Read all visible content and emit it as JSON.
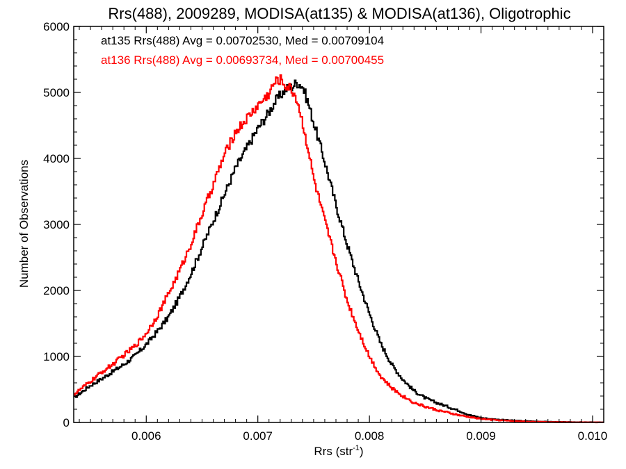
{
  "chart_data": {
    "type": "line",
    "title": "Rrs(488), 2009289, MODISA(at135) & MODISA(at136), Oligotrophic",
    "xlabel": "Rrs (str",
    "xlabel_sup": "-1",
    "xlabel_suffix": ")",
    "ylabel": "Number of Observations",
    "xlim": [
      0.00535,
      0.0101
    ],
    "ylim": [
      0,
      6000
    ],
    "x_ticks": [
      {
        "value": 0.006,
        "label": "0.006"
      },
      {
        "value": 0.007,
        "label": "0.007"
      },
      {
        "value": 0.008,
        "label": "0.008"
      },
      {
        "value": 0.009,
        "label": "0.009"
      },
      {
        "value": 0.01,
        "label": "0.010"
      }
    ],
    "y_ticks": [
      {
        "value": 0,
        "label": "0"
      },
      {
        "value": 1000,
        "label": "1000"
      },
      {
        "value": 2000,
        "label": "2000"
      },
      {
        "value": 3000,
        "label": "3000"
      },
      {
        "value": 4000,
        "label": "4000"
      },
      {
        "value": 5000,
        "label": "5000"
      },
      {
        "value": 6000,
        "label": "6000"
      }
    ],
    "grid": false,
    "legend_position": "top-left",
    "series": [
      {
        "name": "at135",
        "label": "at135 Rrs(488) Avg = 0.00702530, Med = 0.00709104",
        "color": "#000000",
        "x": [
          0.00535,
          0.0055,
          0.0056,
          0.0057,
          0.0058,
          0.0059,
          0.006,
          0.0061,
          0.0062,
          0.0063,
          0.0064,
          0.0065,
          0.0066,
          0.0067,
          0.0068,
          0.0069,
          0.007,
          0.0071,
          0.00715,
          0.0072,
          0.00725,
          0.0073,
          0.00735,
          0.0074,
          0.00745,
          0.0075,
          0.0076,
          0.0077,
          0.0078,
          0.0079,
          0.008,
          0.0081,
          0.0082,
          0.0083,
          0.0084,
          0.0085,
          0.0086,
          0.0087,
          0.0088,
          0.0089,
          0.009,
          0.0091,
          0.0092,
          0.0093,
          0.0094,
          0.0096,
          0.0098,
          0.0101
        ],
        "values": [
          370,
          560,
          660,
          770,
          880,
          1010,
          1180,
          1380,
          1600,
          1900,
          2250,
          2650,
          3050,
          3450,
          3850,
          4150,
          4450,
          4700,
          4850,
          4950,
          5050,
          5080,
          5150,
          5100,
          4850,
          4550,
          3950,
          3300,
          2700,
          2150,
          1650,
          1200,
          880,
          650,
          480,
          370,
          300,
          240,
          180,
          110,
          70,
          50,
          38,
          28,
          20,
          10,
          5,
          2
        ]
      },
      {
        "name": "at136",
        "label": "at136 Rrs(488) Avg = 0.00693734, Med = 0.00700455",
        "color": "#ff0000",
        "x": [
          0.00535,
          0.0055,
          0.0056,
          0.0057,
          0.0058,
          0.0059,
          0.006,
          0.0061,
          0.0062,
          0.0063,
          0.0064,
          0.0065,
          0.0066,
          0.0067,
          0.0068,
          0.0069,
          0.007,
          0.0071,
          0.00715,
          0.0072,
          0.00725,
          0.0073,
          0.00735,
          0.0074,
          0.00745,
          0.0075,
          0.0076,
          0.0077,
          0.0078,
          0.0079,
          0.008,
          0.0081,
          0.0082,
          0.0083,
          0.0084,
          0.0085,
          0.0086,
          0.0087,
          0.0088,
          0.0089,
          0.009,
          0.0091,
          0.0092,
          0.0093,
          0.0094,
          0.0096,
          0.0098,
          0.0101
        ],
        "values": [
          420,
          620,
          760,
          880,
          1020,
          1160,
          1350,
          1620,
          1950,
          2300,
          2700,
          3150,
          3600,
          4050,
          4400,
          4600,
          4800,
          4980,
          5150,
          5200,
          5100,
          5050,
          4900,
          4550,
          4150,
          3700,
          3050,
          2450,
          1850,
          1400,
          1000,
          700,
          520,
          400,
          300,
          240,
          190,
          150,
          110,
          80,
          55,
          40,
          30,
          20,
          14,
          7,
          3,
          1
        ]
      }
    ]
  }
}
